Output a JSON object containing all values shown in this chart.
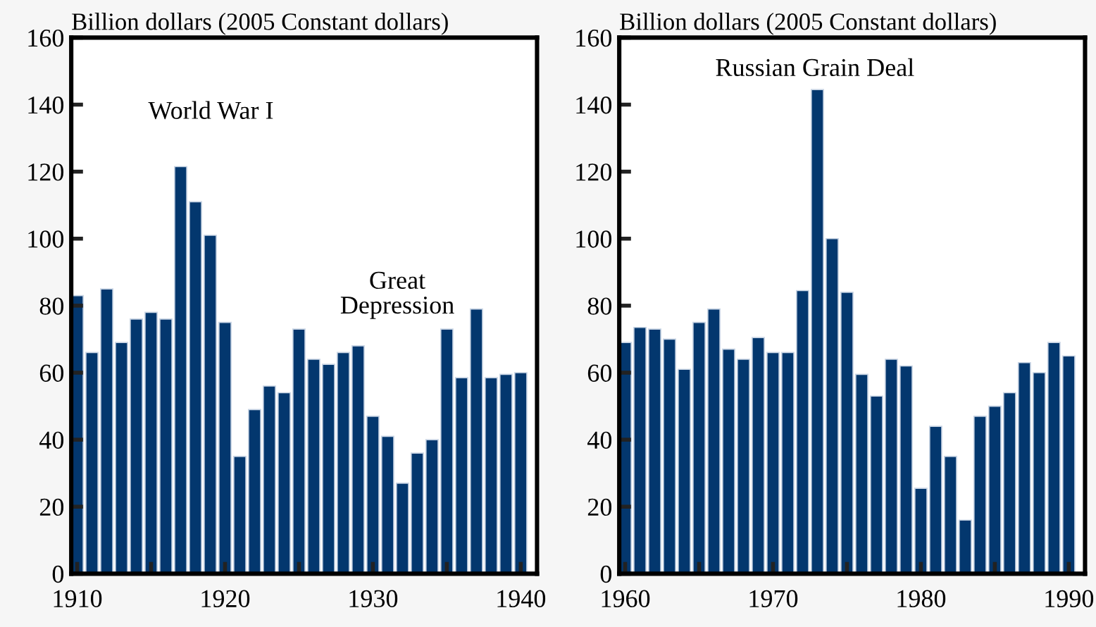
{
  "chart_data": [
    {
      "type": "bar",
      "ylabel": "Billion dollars (2005 Constant dollars)",
      "color": "#03376e",
      "x": [
        1910,
        1911,
        1912,
        1913,
        1914,
        1915,
        1916,
        1917,
        1918,
        1919,
        1920,
        1921,
        1922,
        1923,
        1924,
        1925,
        1926,
        1927,
        1928,
        1929,
        1930,
        1931,
        1932,
        1933,
        1934,
        1935,
        1936,
        1937,
        1938,
        1939,
        1940
      ],
      "values": [
        83,
        66,
        85,
        69,
        76,
        78,
        76,
        121.5,
        111,
        101,
        75,
        35,
        49,
        56,
        54,
        73,
        64,
        62.5,
        66,
        68,
        47,
        41,
        27,
        36,
        40,
        73,
        58.5,
        79,
        58.5,
        59.5,
        60
      ],
      "xlim": [
        1909.6,
        1941.1
      ],
      "xticks": [
        1910,
        {
          "value": 1915,
          "label": null
        },
        1920,
        {
          "value": 1925,
          "label": null
        },
        1930,
        {
          "value": 1935,
          "label": null
        },
        1940
      ],
      "ylim": [
        0,
        160
      ],
      "yticks": [
        0,
        20,
        40,
        60,
        80,
        100,
        120,
        140,
        160
      ],
      "annotations": [
        "World War I",
        "Great\nDepression"
      ]
    },
    {
      "type": "bar",
      "ylabel": "Billion dollars (2005 Constant dollars)",
      "color": "#03376e",
      "x": [
        1960,
        1961,
        1962,
        1963,
        1964,
        1965,
        1966,
        1967,
        1968,
        1969,
        1970,
        1971,
        1972,
        1973,
        1974,
        1975,
        1976,
        1977,
        1978,
        1979,
        1980,
        1981,
        1982,
        1983,
        1984,
        1985,
        1986,
        1987,
        1988,
        1989,
        1990
      ],
      "values": [
        69,
        73.5,
        73,
        70,
        61,
        75,
        79,
        67,
        64,
        70.5,
        66,
        66,
        84.5,
        144.5,
        100,
        84,
        59.5,
        53,
        64,
        62,
        25.5,
        44,
        35,
        16,
        47,
        50,
        54,
        63,
        60,
        69,
        65
      ],
      "xlim": [
        1959.6,
        1991.1
      ],
      "xticks": [
        1960,
        {
          "value": 1965,
          "label": null
        },
        1970,
        {
          "value": 1975,
          "label": null
        },
        1980,
        {
          "value": 1985,
          "label": null
        },
        1990
      ],
      "ylim": [
        0,
        160
      ],
      "yticks": [
        0,
        20,
        40,
        60,
        80,
        100,
        120,
        140,
        160
      ],
      "annotations": [
        "Russian Grain Deal"
      ]
    }
  ]
}
